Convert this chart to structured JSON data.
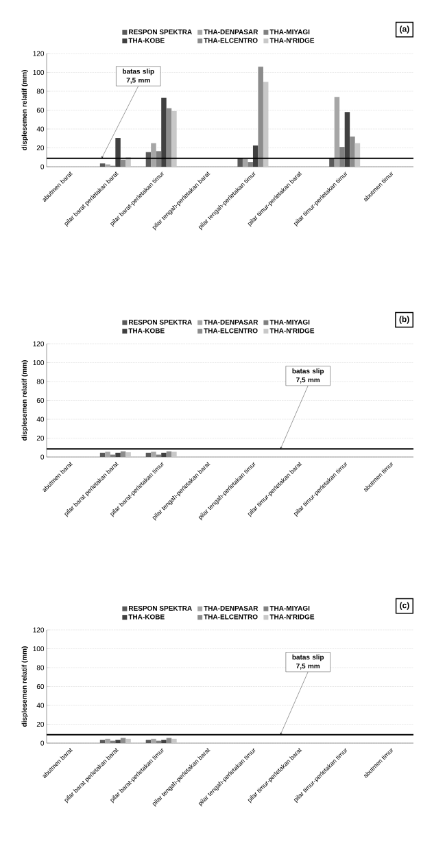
{
  "chart_data": [
    {
      "type": "bar",
      "ylabel": "displesemen relatif (mm)",
      "annotations": [
        "(a)"
      ],
      "categories": [
        "abutmen barat",
        "pilar barat perletakan barat",
        "pilar barat-perletakan timur",
        "pilar tengah-perletakan barat",
        "pilar tengah-perletakan timur",
        "pilar timur-perletakan barat",
        "pilar timur-perletakan timur",
        "abutmen timur"
      ],
      "series": [
        {
          "name": "RESPON SPEKTRA",
          "color": "#595959",
          "values": [
            null,
            3.5,
            15.5,
            null,
            9,
            null,
            9,
            null
          ]
        },
        {
          "name": "THA-DENPASAR",
          "color": "#a6a6a6",
          "values": [
            null,
            2.5,
            25,
            null,
            8,
            null,
            74,
            null
          ]
        },
        {
          "name": "THA-MIYAGI",
          "color": "#7f7f7f",
          "values": [
            null,
            1,
            16.5,
            null,
            5,
            null,
            21,
            null
          ]
        },
        {
          "name": "THA-KOBE",
          "color": "#404040",
          "values": [
            null,
            30.5,
            73,
            null,
            22.5,
            null,
            58,
            null
          ]
        },
        {
          "name": "THA-ELCENTRO",
          "color": "#8c8c8c",
          "values": [
            null,
            7.5,
            62,
            null,
            106,
            null,
            32,
            null
          ]
        },
        {
          "name": "THA-N'RIDGE",
          "color": "#c8c8c8",
          "values": [
            null,
            10,
            59,
            null,
            90,
            null,
            25,
            null
          ]
        }
      ],
      "ylim": [
        0,
        120
      ],
      "yticks": [
        0,
        20,
        40,
        60,
        80,
        100,
        120
      ],
      "grid": "y",
      "legend": "top",
      "ref_lines": [
        {
          "axis": "y",
          "value": 9,
          "label": "batas slip 7,5 mm"
        }
      ]
    },
    {
      "type": "bar",
      "ylabel": "displesemen relatif (mm)",
      "annotations": [
        "(b)"
      ],
      "categories": [
        "abutmen barat",
        "pilar barat perletakan barat",
        "pilar barat-perletakan timur",
        "pilar tengah-perletakan barat",
        "pilar tengah-perletakan timur",
        "pilar timur-perletakan barat",
        "pilar timur-perletakan timur",
        "abutmen timur"
      ],
      "series": [
        {
          "name": "RESPON SPEKTRA",
          "color": "#595959",
          "values": [
            null,
            4.5,
            4.5,
            null,
            null,
            null,
            null,
            null
          ]
        },
        {
          "name": "THA-DENPASAR",
          "color": "#a6a6a6",
          "values": [
            null,
            5.5,
            5.5,
            null,
            null,
            null,
            null,
            null
          ]
        },
        {
          "name": "THA-MIYAGI",
          "color": "#7f7f7f",
          "values": [
            null,
            2.5,
            2.5,
            null,
            null,
            null,
            null,
            null
          ]
        },
        {
          "name": "THA-KOBE",
          "color": "#404040",
          "values": [
            null,
            4.5,
            4.5,
            null,
            null,
            null,
            null,
            null
          ]
        },
        {
          "name": "THA-ELCENTRO",
          "color": "#8c8c8c",
          "values": [
            null,
            6,
            6,
            null,
            null,
            null,
            null,
            null
          ]
        },
        {
          "name": "THA-N'RIDGE",
          "color": "#c8c8c8",
          "values": [
            null,
            5,
            5.5,
            null,
            null,
            null,
            null,
            null
          ]
        }
      ],
      "ylim": [
        0,
        120
      ],
      "yticks": [
        0,
        20,
        40,
        60,
        80,
        100,
        120
      ],
      "grid": "y",
      "legend": "top",
      "ref_lines": [
        {
          "axis": "y",
          "value": 8.5,
          "label": "batas slip 7,5 mm"
        }
      ]
    },
    {
      "type": "bar",
      "ylabel": "displesemen relatif (mm)",
      "annotations": [
        "(c)"
      ],
      "categories": [
        "abutmen barat",
        "pilar barat perletakan barat",
        "pilar barat-perletakan timur",
        "pilar tengah-perletakan barat",
        "pilar tengah-perletakan timur",
        "pilar timur-perletakan barat",
        "pilar timur-perletakan timur",
        "abutmen timur"
      ],
      "series": [
        {
          "name": "RESPON SPEKTRA",
          "color": "#595959",
          "values": [
            null,
            3.5,
            3.5,
            null,
            null,
            null,
            null,
            null
          ]
        },
        {
          "name": "THA-DENPASAR",
          "color": "#a6a6a6",
          "values": [
            null,
            4.5,
            4.5,
            null,
            null,
            null,
            null,
            null
          ]
        },
        {
          "name": "THA-MIYAGI",
          "color": "#7f7f7f",
          "values": [
            null,
            2.5,
            2.5,
            null,
            null,
            null,
            null,
            null
          ]
        },
        {
          "name": "THA-KOBE",
          "color": "#404040",
          "values": [
            null,
            3.5,
            3.5,
            null,
            null,
            null,
            null,
            null
          ]
        },
        {
          "name": "THA-ELCENTRO",
          "color": "#8c8c8c",
          "values": [
            null,
            5.5,
            5.5,
            null,
            null,
            null,
            null,
            null
          ]
        },
        {
          "name": "THA-N'RIDGE",
          "color": "#c8c8c8",
          "values": [
            null,
            4.5,
            4.5,
            null,
            null,
            null,
            null,
            null
          ]
        }
      ],
      "ylim": [
        0,
        120
      ],
      "yticks": [
        0,
        20,
        40,
        60,
        80,
        100,
        120
      ],
      "grid": "y",
      "legend": "top",
      "ref_lines": [
        {
          "axis": "y",
          "value": 9,
          "label": "batas slip 7,5 mm"
        }
      ]
    }
  ]
}
